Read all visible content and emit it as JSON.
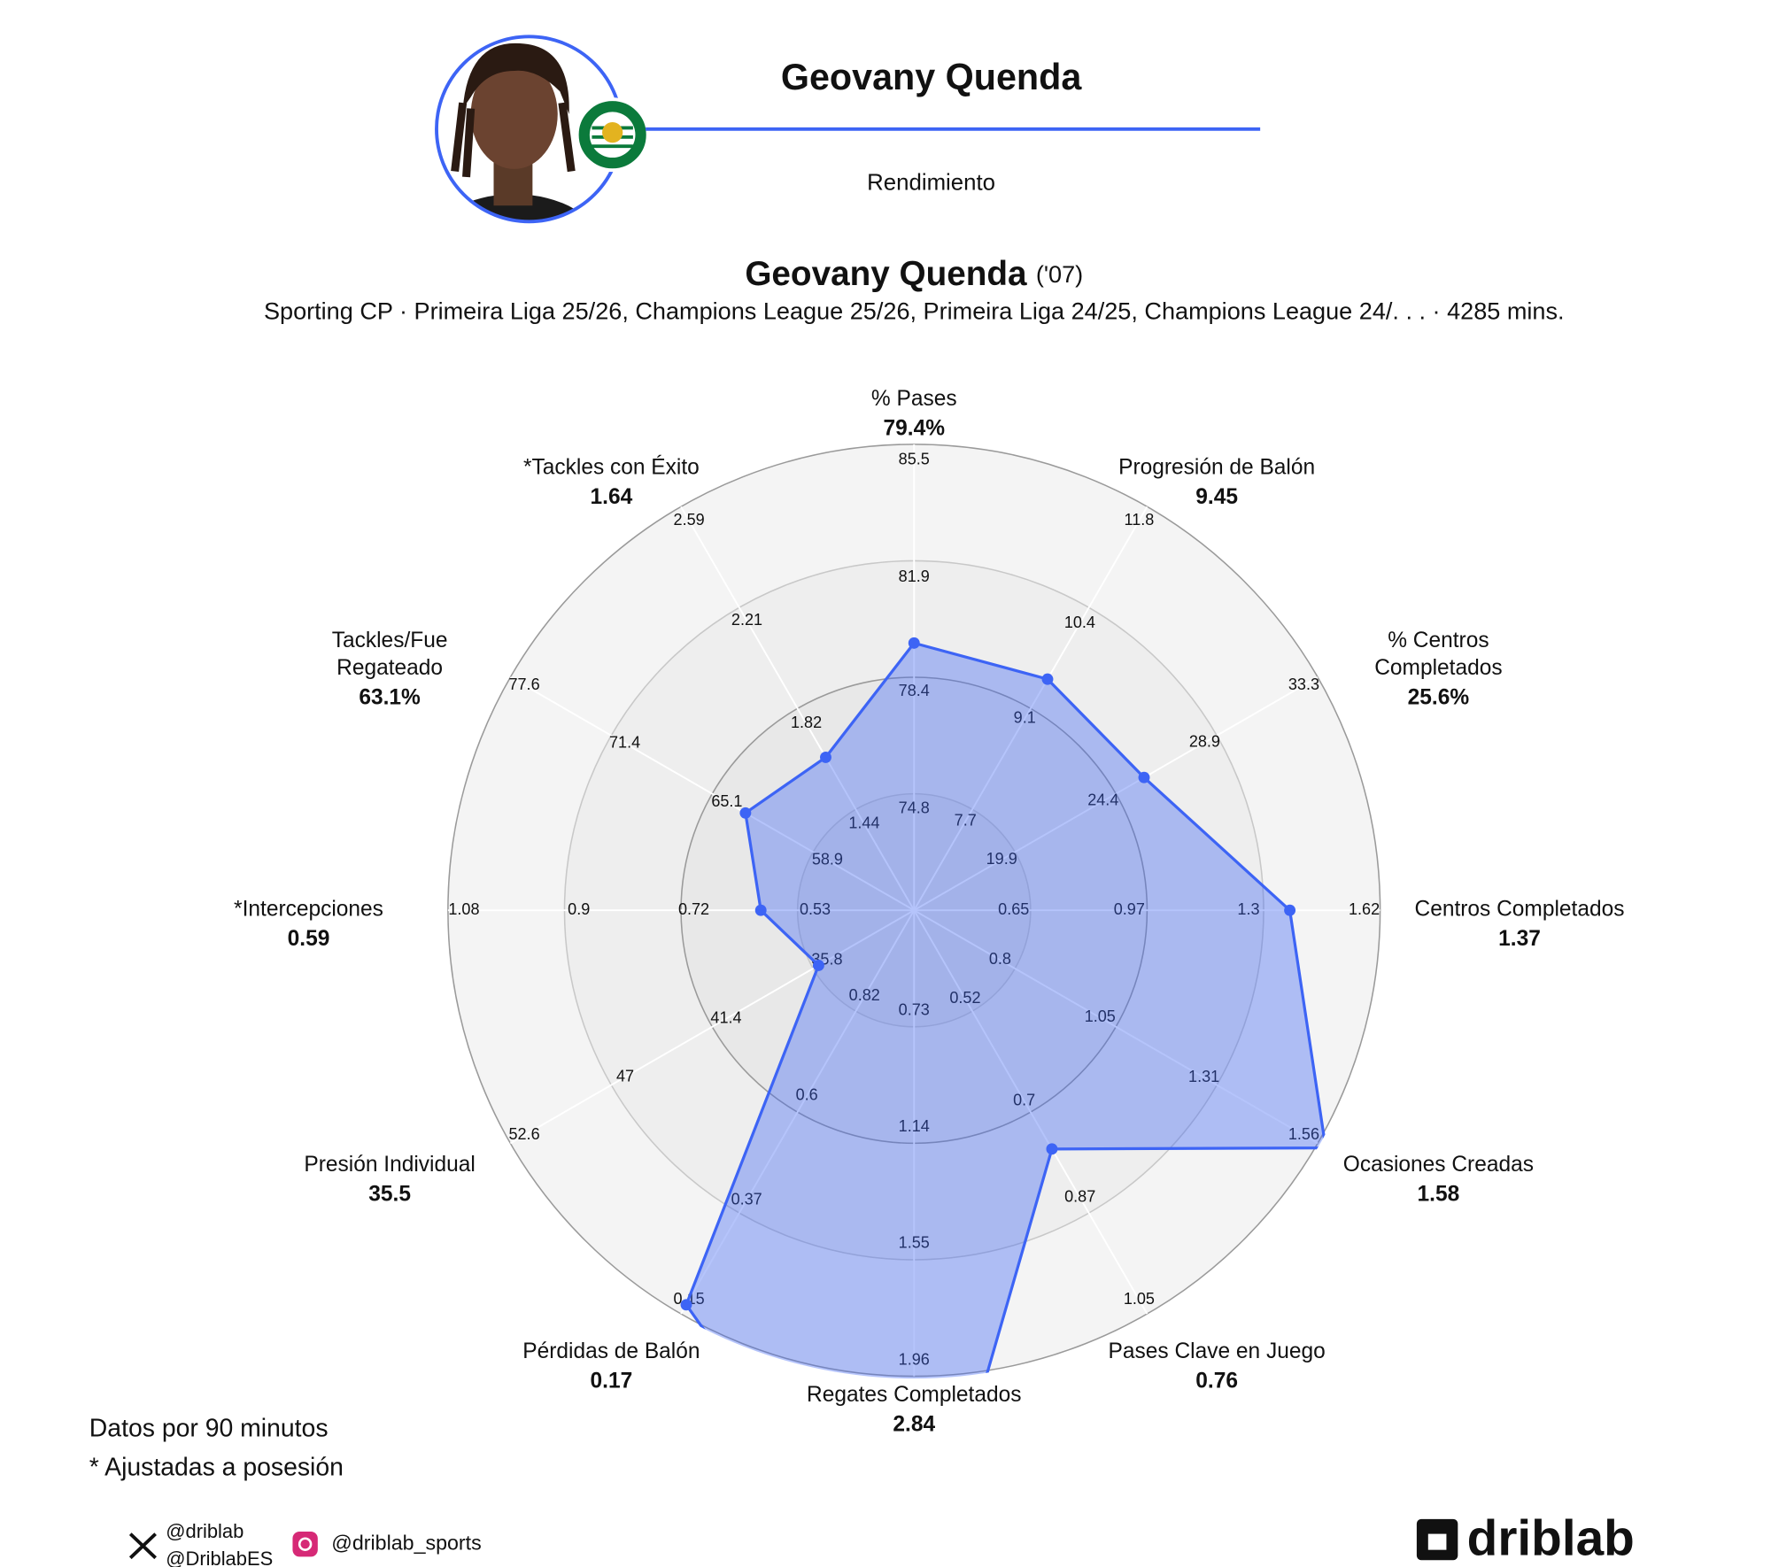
{
  "header": {
    "title": "Geovany Quenda",
    "subtitle": "Rendimiento"
  },
  "chart_data": {
    "type": "radar",
    "title": "Geovany Quenda",
    "title_note": "('07)",
    "subtitle": "Sporting CP · Primeira Liga 25/26, Champions League 25/26, Primeira Liga 24/25, Champions League 24/. . . · 4285 mins.",
    "color": "#3d64f5",
    "categories": [
      [
        "% Pases"
      ],
      [
        "Progresión de Balón"
      ],
      [
        "% Centros",
        "Completados"
      ],
      [
        "Centros Completados"
      ],
      [
        "Ocasiones Creadas"
      ],
      [
        "Pases Clave en Juego"
      ],
      [
        "Regates Completados"
      ],
      [
        "Pérdidas de Balón"
      ],
      [
        "Presión Individual"
      ],
      [
        "*Intercepciones"
      ],
      [
        "Tackles/Fue",
        "Regateado"
      ],
      [
        "*Tackles con Éxito"
      ]
    ],
    "values": [
      79.4,
      9.45,
      25.6,
      1.37,
      1.58,
      0.76,
      2.84,
      0.17,
      35.5,
      0.59,
      63.1,
      1.64
    ],
    "value_labels": [
      "79.4%",
      "9.45",
      "25.6%",
      "1.37",
      "1.58",
      "0.76",
      "2.84",
      "0.17",
      "35.5",
      "0.59",
      "63.1%",
      "1.64"
    ],
    "axis_scales": [
      {
        "lim": [
          71.2,
          85.5
        ],
        "ticks": [
          74.8,
          78.4,
          81.9,
          85.5
        ]
      },
      {
        "lim": [
          6.3,
          11.8
        ],
        "ticks": [
          7.7,
          9.1,
          10.4,
          11.8
        ]
      },
      {
        "lim": [
          15.4,
          33.3
        ],
        "ticks": [
          19.9,
          24.4,
          28.9,
          33.3
        ]
      },
      {
        "lim": [
          0.33,
          1.62
        ],
        "ticks": [
          0.65,
          0.97,
          1.3,
          1.62
        ]
      },
      {
        "lim": [
          0.55,
          1.56
        ],
        "ticks": [
          0.8,
          1.05,
          1.31,
          1.56
        ]
      },
      {
        "lim": [
          0.34,
          1.05
        ],
        "ticks": [
          0.52,
          0.7,
          0.87,
          1.05
        ]
      },
      {
        "lim": [
          0.32,
          1.96
        ],
        "ticks": [
          0.73,
          1.14,
          1.55,
          1.96
        ]
      },
      {
        "lim": [
          1.04,
          0.15
        ],
        "ticks": [
          0.82,
          0.6,
          0.37,
          0.15
        ]
      },
      {
        "lim": [
          30.2,
          52.6
        ],
        "ticks": [
          35.8,
          41.4,
          47,
          52.6
        ]
      },
      {
        "lim": [
          0.35,
          1.08
        ],
        "ticks": [
          0.53,
          0.72,
          0.9,
          1.08
        ]
      },
      {
        "lim": [
          52.7,
          77.6
        ],
        "ticks": [
          58.9,
          65.1,
          71.4,
          77.6
        ]
      },
      {
        "lim": [
          1.06,
          2.59
        ],
        "ticks": [
          1.44,
          1.82,
          2.21,
          2.59
        ]
      }
    ]
  },
  "footer": {
    "notes": [
      "Datos por 90 minutos",
      "* Ajustadas a posesión"
    ],
    "x_handles": [
      "@driblab",
      "@DriblabES"
    ],
    "instagram": "@driblab_sports",
    "brand": "driblab"
  }
}
